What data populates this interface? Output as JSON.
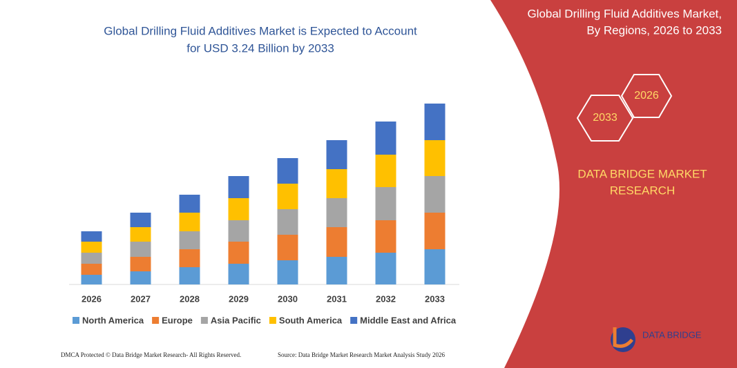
{
  "chart_data": {
    "type": "stacked_bar",
    "title": "Global Drilling Fluid Additives Market is Expected to Account",
    "subtitle": "for USD 3.24 Billion by 2033",
    "categories": [
      "2026",
      "2027",
      "2028",
      "2029",
      "2030",
      "2031",
      "2032",
      "2033"
    ],
    "series": [
      {
        "name": "North America",
        "color": "#5b9bd5",
        "values": [
          14,
          19,
          25,
          30,
          35,
          40,
          46,
          51
        ]
      },
      {
        "name": "Europe",
        "color": "#ed7d31",
        "values": [
          16,
          21,
          26,
          32,
          37,
          43,
          47,
          53
        ]
      },
      {
        "name": "Asia Pacific",
        "color": "#a5a5a5",
        "values": [
          16,
          22,
          26,
          31,
          37,
          42,
          48,
          53
        ]
      },
      {
        "name": "South America",
        "color": "#ffc000",
        "values": [
          16,
          21,
          27,
          32,
          37,
          42,
          47,
          52
        ]
      },
      {
        "name": "Middle East and Africa",
        "color": "#4472c4",
        "values": [
          15,
          21,
          26,
          32,
          37,
          42,
          48,
          53
        ]
      }
    ],
    "ylim": [
      0,
      270
    ]
  },
  "panel": {
    "title_line1": "Global Drilling Fluid Additives Market,",
    "title_line2": "By Regions, 2026 to 2033",
    "hex_right": "2026",
    "hex_left": "2033",
    "brand_line1": "DATA BRIDGE MARKET",
    "brand_line2": "RESEARCH",
    "logo_text": "DATA BRIDGE"
  },
  "footer": {
    "left": "DMCA Protected © Data Bridge Market Research-  All Rights Reserved.",
    "right": "Source: Data Bridge Market Research  Market Analysis Study 2026"
  }
}
